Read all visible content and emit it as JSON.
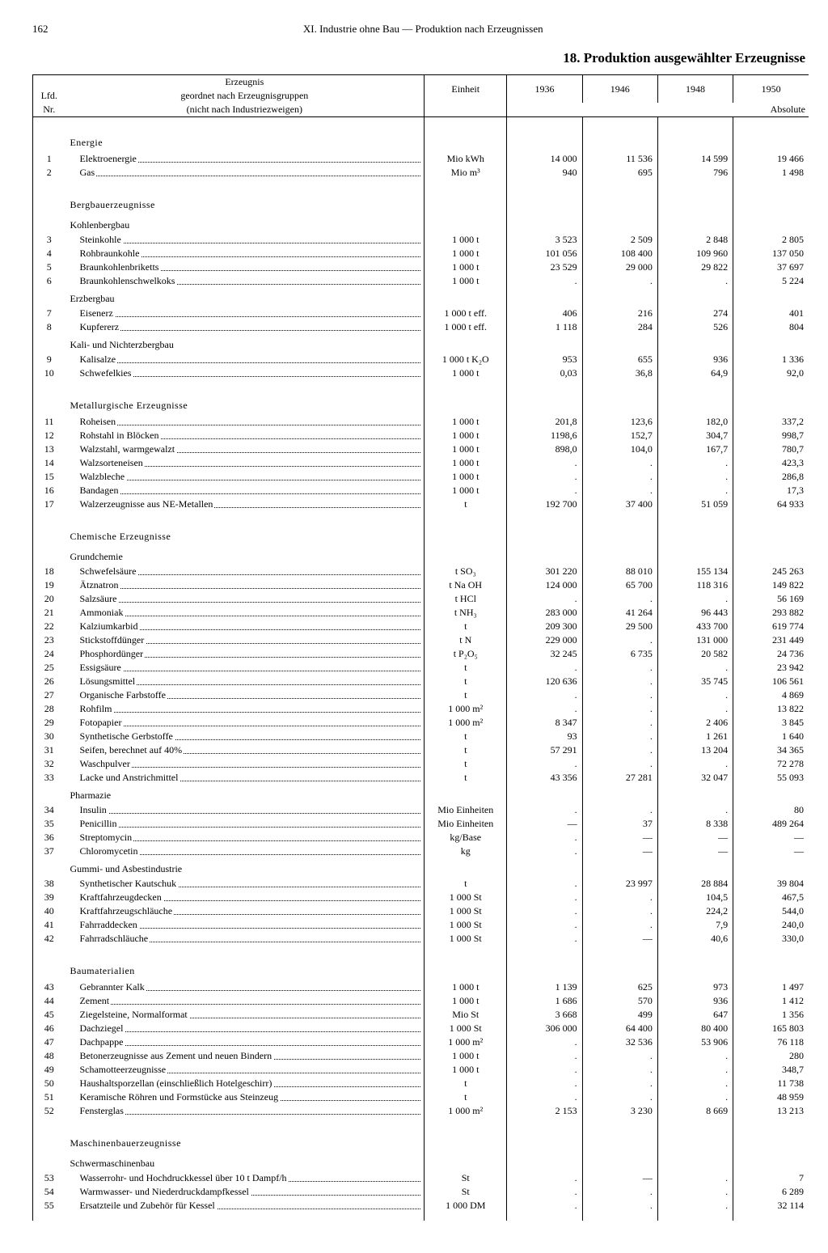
{
  "page_number": "162",
  "chapter": "XI. Industrie ohne Bau — Produktion nach Erzeugnissen",
  "title": "18. Produktion ausgewählter Erzeugnisse",
  "head": {
    "nr1": "Lfd.",
    "nr2": "Nr.",
    "prod1": "Erzeugnis",
    "prod2": "geordnet nach Erzeugnisgruppen",
    "prod3": "(nicht nach Industriezweigen)",
    "unit": "Einheit",
    "y1936": "1936",
    "y1946": "1946",
    "y1948": "1948",
    "y1950": "1950",
    "abs": "Absolute"
  },
  "sections": [
    {
      "title": "Energie",
      "rows": [
        {
          "nr": "1",
          "name": "Elektroenergie",
          "unit": "Mio kWh",
          "v": [
            "14 000",
            "11 536",
            "14 599",
            "19 466"
          ]
        },
        {
          "nr": "2",
          "name": "Gas",
          "unit": "Mio m³",
          "v": [
            "940",
            "695",
            "796",
            "1 498"
          ]
        }
      ]
    },
    {
      "title": "Bergbauerzeugnisse",
      "subs": [
        {
          "title": "Kohlenbergbau",
          "rows": [
            {
              "nr": "3",
              "name": "Steinkohle",
              "unit": "1 000 t",
              "v": [
                "3 523",
                "2 509",
                "2 848",
                "2 805"
              ]
            },
            {
              "nr": "4",
              "name": "Rohbraunkohle",
              "unit": "1 000 t",
              "v": [
                "101 056",
                "108 400",
                "109 960",
                "137 050"
              ]
            },
            {
              "nr": "5",
              "name": "Braunkohlenbriketts",
              "unit": "1 000 t",
              "v": [
                "23 529",
                "29 000",
                "29 822",
                "37 697"
              ]
            },
            {
              "nr": "6",
              "name": "Braunkohlenschwelkoks",
              "unit": "1 000 t",
              "v": [
                ".",
                ".",
                ".",
                "5 224"
              ]
            }
          ]
        },
        {
          "title": "Erzbergbau",
          "rows": [
            {
              "nr": "7",
              "name": "Eisenerz",
              "unit": "1 000 t eff.",
              "v": [
                "406",
                "216",
                "274",
                "401"
              ]
            },
            {
              "nr": "8",
              "name": "Kupfererz",
              "unit": "1 000 t eff.",
              "v": [
                "1 118",
                "284",
                "526",
                "804"
              ]
            }
          ]
        },
        {
          "title": "Kali- und Nichterzbergbau",
          "rows": [
            {
              "nr": "9",
              "name": "Kalisalze",
              "unit": "1 000 t K₂O",
              "v": [
                "953",
                "655",
                "936",
                "1 336"
              ]
            },
            {
              "nr": "10",
              "name": "Schwefelkies",
              "unit": "1 000 t",
              "v": [
                "0,03",
                "36,8",
                "64,9",
                "92,0"
              ]
            }
          ]
        }
      ]
    },
    {
      "title": "Metallurgische Erzeugnisse",
      "rows": [
        {
          "nr": "11",
          "name": "Roheisen",
          "unit": "1 000 t",
          "v": [
            "201,8",
            "123,6",
            "182,0",
            "337,2"
          ]
        },
        {
          "nr": "12",
          "name": "Rohstahl in Blöcken",
          "unit": "1 000 t",
          "v": [
            "1198,6",
            "152,7",
            "304,7",
            "998,7"
          ]
        },
        {
          "nr": "13",
          "name": "Walzstahl, warmgewalzt",
          "unit": "1 000 t",
          "v": [
            "898,0",
            "104,0",
            "167,7",
            "780,7"
          ]
        },
        {
          "nr": "14",
          "name": "Walzsorteneisen",
          "unit": "1 000 t",
          "v": [
            ".",
            ".",
            ".",
            "423,3"
          ]
        },
        {
          "nr": "15",
          "name": "Walzbleche",
          "unit": "1 000 t",
          "v": [
            ".",
            ".",
            ".",
            "286,8"
          ]
        },
        {
          "nr": "16",
          "name": "Bandagen",
          "unit": "1 000 t",
          "v": [
            ".",
            ".",
            ".",
            "17,3"
          ]
        },
        {
          "nr": "17",
          "name": "Walzerzeugnisse aus NE-Metallen",
          "unit": "t",
          "v": [
            "192 700",
            "37 400",
            "51 059",
            "64 933"
          ]
        }
      ]
    },
    {
      "title": "Chemische Erzeugnisse",
      "subs": [
        {
          "title": "Grundchemie",
          "rows": [
            {
              "nr": "18",
              "name": "Schwefelsäure",
              "unit": "t SO₃",
              "v": [
                "301 220",
                "88 010",
                "155 134",
                "245 263"
              ]
            },
            {
              "nr": "19",
              "name": "Ätznatron",
              "unit": "t Na OH",
              "v": [
                "124 000",
                "65 700",
                "118 316",
                "149 822"
              ]
            },
            {
              "nr": "20",
              "name": "Salzsäure",
              "unit": "t HCl",
              "v": [
                ".",
                ".",
                ".",
                "56 169"
              ]
            },
            {
              "nr": "21",
              "name": "Ammoniak",
              "unit": "t NH₃",
              "v": [
                "283 000",
                "41 264",
                "96 443",
                "293 882"
              ]
            },
            {
              "nr": "22",
              "name": "Kalziumkarbid",
              "unit": "t",
              "v": [
                "209 300",
                "29 500",
                "433 700",
                "619 774"
              ]
            },
            {
              "nr": "23",
              "name": "Stickstoffdünger",
              "unit": "t N",
              "v": [
                "229 000",
                ".",
                "131 000",
                "231 449"
              ]
            },
            {
              "nr": "24",
              "name": "Phosphordünger",
              "unit": "t P₂O₅",
              "v": [
                "32 245",
                "6 735",
                "20 582",
                "24 736"
              ]
            },
            {
              "nr": "25",
              "name": "Essigsäure",
              "unit": "t",
              "v": [
                ".",
                ".",
                ".",
                "23 942"
              ]
            },
            {
              "nr": "26",
              "name": "Lösungsmittel",
              "unit": "t",
              "v": [
                "120 636",
                ".",
                "35 745",
                "106 561"
              ]
            },
            {
              "nr": "27",
              "name": "Organische Farbstoffe",
              "unit": "t",
              "v": [
                ".",
                ".",
                ".",
                "4 869"
              ]
            },
            {
              "nr": "28",
              "name": "Rohfilm",
              "unit": "1 000 m²",
              "v": [
                ".",
                ".",
                ".",
                "13 822"
              ]
            },
            {
              "nr": "29",
              "name": "Fotopapier",
              "unit": "1 000 m²",
              "v": [
                "8 347",
                ".",
                "2 406",
                "3 845"
              ]
            },
            {
              "nr": "30",
              "name": "Synthetische Gerbstoffe",
              "unit": "t",
              "v": [
                "93",
                ".",
                "1 261",
                "1 640"
              ]
            },
            {
              "nr": "31",
              "name": "Seifen, berechnet auf 40%",
              "unit": "t",
              "v": [
                "57 291",
                ".",
                "13 204",
                "34 365"
              ]
            },
            {
              "nr": "32",
              "name": "Waschpulver",
              "unit": "t",
              "v": [
                ".",
                ".",
                ".",
                "72 278"
              ]
            },
            {
              "nr": "33",
              "name": "Lacke und Anstrichmittel",
              "unit": "t",
              "v": [
                "43 356",
                "27 281",
                "32 047",
                "55 093"
              ]
            }
          ]
        },
        {
          "title": "Pharmazie",
          "rows": [
            {
              "nr": "34",
              "name": "Insulin",
              "unit": "Mio Einheiten",
              "v": [
                ".",
                ".",
                ".",
                "80"
              ]
            },
            {
              "nr": "35",
              "name": "Penicillin",
              "unit": "Mio Einheiten",
              "v": [
                "—",
                "37",
                "8 338",
                "489 264"
              ]
            },
            {
              "nr": "36",
              "name": "Streptomycin",
              "unit": "kg/Base",
              "v": [
                ".",
                "—",
                "—",
                "—"
              ]
            },
            {
              "nr": "37",
              "name": "Chloromycetin",
              "unit": "kg",
              "v": [
                ".",
                "—",
                "—",
                "—"
              ]
            }
          ]
        },
        {
          "title": "Gummi- und Asbestindustrie",
          "rows": [
            {
              "nr": "38",
              "name": "Synthetischer Kautschuk",
              "unit": "t",
              "v": [
                ".",
                "23 997",
                "28 884",
                "39 804"
              ]
            },
            {
              "nr": "39",
              "name": "Kraftfahrzeugdecken",
              "unit": "1 000 St",
              "v": [
                ".",
                ".",
                "104,5",
                "467,5"
              ]
            },
            {
              "nr": "40",
              "name": "Kraftfahrzeugschläuche",
              "unit": "1 000 St",
              "v": [
                ".",
                ".",
                "224,2",
                "544,0"
              ]
            },
            {
              "nr": "41",
              "name": "Fahrraddecken",
              "unit": "1 000 St",
              "v": [
                ".",
                ".",
                "7,9",
                "240,0"
              ]
            },
            {
              "nr": "42",
              "name": "Fahrradschläuche",
              "unit": "1 000 St",
              "v": [
                ".",
                "—",
                "40,6",
                "330,0"
              ]
            }
          ]
        }
      ]
    },
    {
      "title": "Baumaterialien",
      "rows": [
        {
          "nr": "43",
          "name": "Gebrannter Kalk",
          "unit": "1 000 t",
          "v": [
            "1 139",
            "625",
            "973",
            "1 497"
          ]
        },
        {
          "nr": "44",
          "name": "Zement",
          "unit": "1 000 t",
          "v": [
            "1 686",
            "570",
            "936",
            "1 412"
          ]
        },
        {
          "nr": "45",
          "name": "Ziegelsteine, Normalformat",
          "unit": "Mio St",
          "v": [
            "3 668",
            "499",
            "647",
            "1 356"
          ]
        },
        {
          "nr": "46",
          "name": "Dachziegel",
          "unit": "1 000 St",
          "v": [
            "306 000",
            "64 400",
            "80 400",
            "165 803"
          ]
        },
        {
          "nr": "47",
          "name": "Dachpappe",
          "unit": "1 000 m²",
          "v": [
            ".",
            "32 536",
            "53 906",
            "76 118"
          ]
        },
        {
          "nr": "48",
          "name": "Betonerzeugnisse aus Zement und neuen Bindern",
          "unit": "1 000 t",
          "v": [
            ".",
            ".",
            ".",
            "280"
          ]
        },
        {
          "nr": "49",
          "name": "Schamotteerzeugnisse",
          "unit": "1 000 t",
          "v": [
            ".",
            ".",
            ".",
            "348,7"
          ]
        },
        {
          "nr": "50",
          "name": "Haushaltsporzellan (einschließlich Hotelgeschirr)",
          "unit": "t",
          "v": [
            ".",
            ".",
            ".",
            "11 738"
          ]
        },
        {
          "nr": "51",
          "name": "Keramische Röhren und Formstücke aus Steinzeug",
          "unit": "t",
          "v": [
            ".",
            ".",
            ".",
            "48 959"
          ]
        },
        {
          "nr": "52",
          "name": "Fensterglas",
          "unit": "1 000 m²",
          "v": [
            "2 153",
            "3 230",
            "8 669",
            "13 213"
          ]
        }
      ]
    },
    {
      "title": "Maschinenbauerzeugnisse",
      "subs": [
        {
          "title": "Schwermaschinenbau",
          "rows": [
            {
              "nr": "53",
              "name": "Wasserrohr- und Hochdruckkessel über 10 t Dampf/h",
              "unit": "St",
              "v": [
                ".",
                "—",
                ".",
                "7"
              ]
            },
            {
              "nr": "54",
              "name": "Warmwasser- und Niederdruckdampfkessel",
              "unit": "St",
              "v": [
                ".",
                ".",
                ".",
                "6 289"
              ]
            },
            {
              "nr": "55",
              "name": "Ersatzteile und Zubehör für Kessel",
              "unit": "1 000 DM",
              "v": [
                ".",
                ".",
                ".",
                "32 114"
              ]
            }
          ]
        }
      ]
    }
  ]
}
